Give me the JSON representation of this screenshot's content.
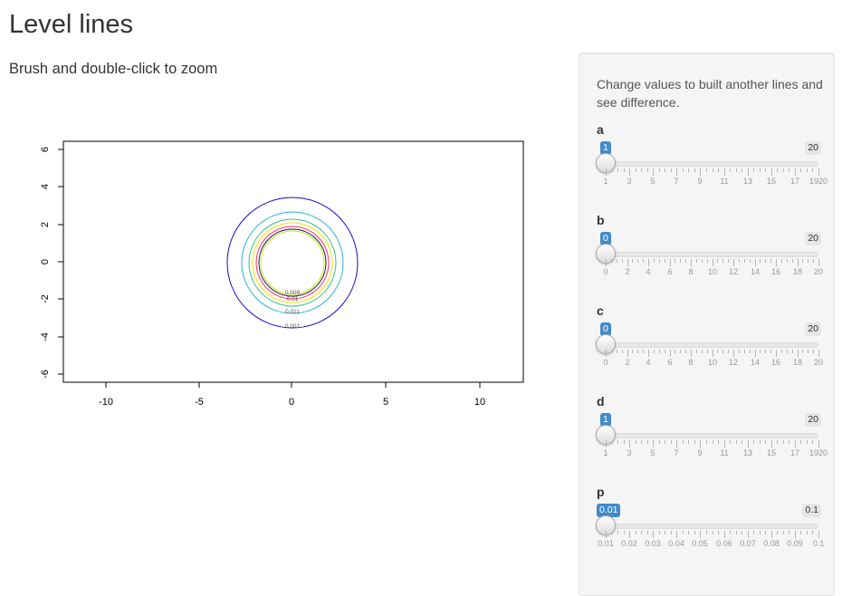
{
  "page": {
    "title": "Level lines",
    "subtitle": "Brush and double-click to zoom"
  },
  "plot": {
    "x_ticks": [
      "-10",
      "-5",
      "0",
      "5",
      "10"
    ],
    "y_ticks": [
      "6",
      "4",
      "2",
      "0",
      "-2",
      "-4",
      "-6"
    ],
    "contour_labels": [
      "0.009",
      "0.01",
      "0.011",
      "0.001"
    ],
    "contour_colors": [
      "#2200cc",
      "#2bb5d8",
      "#33c48a",
      "#f2e200",
      "#ff3060",
      "#1a1a66",
      "#c8e600"
    ]
  },
  "sidebar": {
    "help_text": "Change values to built another lines and see difference.",
    "sliders": [
      {
        "label": "a",
        "value": "1",
        "max": "20",
        "fraction": 0,
        "ticks": [
          "1",
          "3",
          "5",
          "7",
          "9",
          "11",
          "13",
          "15",
          "17",
          "1920"
        ],
        "minor_per_major": 4,
        "major_count": 10
      },
      {
        "label": "b",
        "value": "0",
        "max": "20",
        "fraction": 0,
        "ticks": [
          "0",
          "2",
          "4",
          "6",
          "8",
          "10",
          "12",
          "14",
          "16",
          "18",
          "20"
        ],
        "minor_per_major": 4,
        "major_count": 11
      },
      {
        "label": "c",
        "value": "0",
        "max": "20",
        "fraction": 0,
        "ticks": [
          "0",
          "2",
          "4",
          "6",
          "8",
          "10",
          "12",
          "14",
          "16",
          "18",
          "20"
        ],
        "minor_per_major": 4,
        "major_count": 11
      },
      {
        "label": "d",
        "value": "1",
        "max": "20",
        "fraction": 0,
        "ticks": [
          "1",
          "3",
          "5",
          "7",
          "9",
          "11",
          "13",
          "15",
          "17",
          "1920"
        ],
        "minor_per_major": 4,
        "major_count": 10
      },
      {
        "label": "p",
        "value": "0.01",
        "max": "0.1",
        "fraction": 0,
        "ticks": [
          "0.01",
          "0.02",
          "0.03",
          "0.04",
          "0.05",
          "0.06",
          "0.07",
          "0.08",
          "0.09",
          "0.1"
        ],
        "minor_per_major": 4,
        "major_count": 10
      }
    ]
  }
}
